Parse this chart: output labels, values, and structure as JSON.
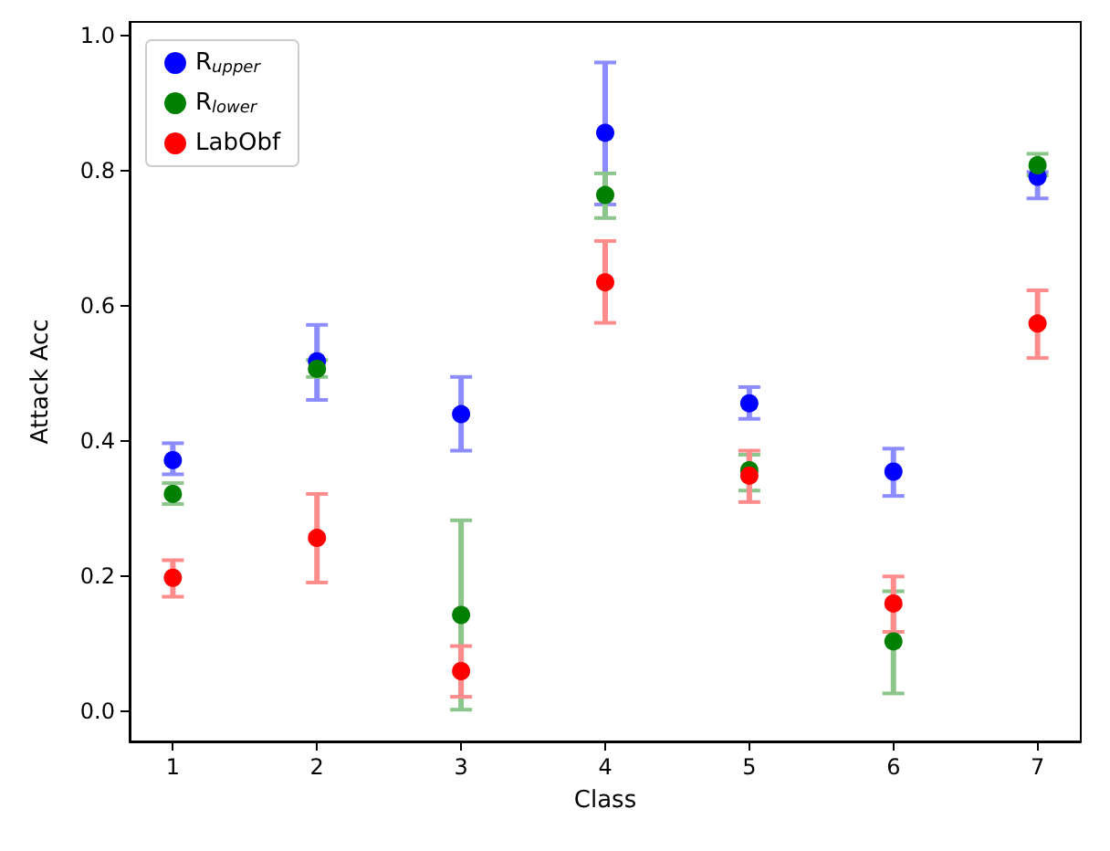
{
  "chart_data": {
    "type": "scatter",
    "xlabel": "Class",
    "ylabel": "Attack Acc",
    "x": [
      1,
      2,
      3,
      4,
      5,
      6,
      7
    ],
    "xlim": [
      0.7,
      7.3
    ],
    "xticks": [
      1,
      2,
      3,
      4,
      5,
      6,
      7
    ],
    "ylim": [
      -0.044,
      1.02
    ],
    "yticks": [
      {
        "value": 0,
        "label": "0.0"
      },
      {
        "value": 0.2,
        "label": "0.2"
      },
      {
        "value": 0.4,
        "label": "0.4"
      },
      {
        "value": 0.6,
        "label": "0.6"
      },
      {
        "value": 0.8,
        "label": "0.8"
      },
      {
        "value": 1,
        "label": "1.0"
      }
    ],
    "grid": false,
    "legend": "top left",
    "marker": "circle",
    "series": [
      {
        "name": "R$_{upper}$",
        "color": "#0000ff",
        "values": [
          0.372,
          0.518,
          0.44,
          0.856,
          0.456,
          0.355,
          0.791
        ],
        "errors": [
          [
            0.351,
            0.397
          ],
          [
            0.461,
            0.572
          ],
          [
            0.386,
            0.495
          ],
          [
            0.75,
            0.96
          ],
          [
            0.433,
            0.48
          ],
          [
            0.319,
            0.389
          ],
          [
            0.759,
            0.798
          ]
        ]
      },
      {
        "name": "R$_{lower}$",
        "color": "#008000",
        "values": [
          0.322,
          0.507,
          0.143,
          0.764,
          0.357,
          0.104,
          0.808
        ],
        "errors": [
          [
            0.307,
            0.338
          ],
          [
            0.495,
            0.52
          ],
          [
            0.003,
            0.283
          ],
          [
            0.73,
            0.796
          ],
          [
            0.327,
            0.38
          ],
          [
            0.027,
            0.178
          ],
          [
            0.793,
            0.825
          ]
        ]
      },
      {
        "name": "LabObf",
        "color": "#ff0000",
        "values": [
          0.198,
          0.257,
          0.06,
          0.635,
          0.349,
          0.16,
          0.574
        ],
        "errors": [
          [
            0.17,
            0.224
          ],
          [
            0.191,
            0.322
          ],
          [
            0.022,
            0.097
          ],
          [
            0.575,
            0.696
          ],
          [
            0.31,
            0.386
          ],
          [
            0.118,
            0.2
          ],
          [
            0.523,
            0.623
          ]
        ]
      }
    ]
  }
}
